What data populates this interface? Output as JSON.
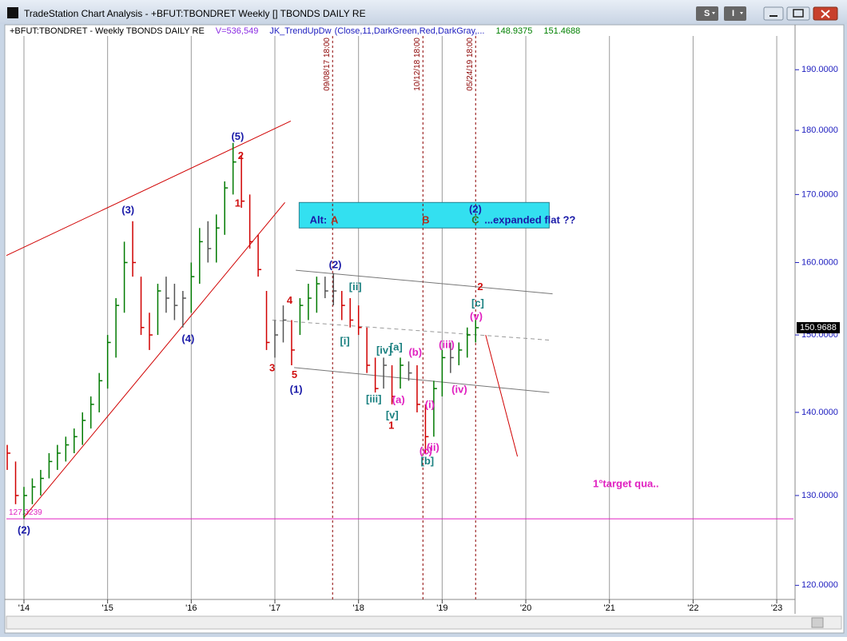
{
  "window": {
    "title": "TradeStation Chart Analysis - +BFUT:TBONDRET Weekly [] TBONDS DAILY RE",
    "buttons": [
      "S",
      "I"
    ]
  },
  "chart_data": {
    "type": "ohlc",
    "header": [
      {
        "text": "+BFUT:TBONDRET - Weekly  TBONDS DAILY RE",
        "color": "#000000"
      },
      {
        "text": "V=536,549",
        "color": "#8a2be2"
      },
      {
        "text": "JK_TrendUpDw",
        "color": "#2020c0"
      },
      {
        "text": "(Close,11,DarkGreen,Red,DarkGray,...",
        "color": "#2020c0"
      },
      {
        "text": "148.9375",
        "color": "#008000"
      },
      {
        "text": "151.4688",
        "color": "#008000"
      }
    ],
    "x": [
      2013.8,
      2013.9,
      2014.0,
      2014.1,
      2014.2,
      2014.3,
      2014.4,
      2014.5,
      2014.6,
      2014.7,
      2014.8,
      2014.9,
      2015.0,
      2015.1,
      2015.2,
      2015.3,
      2015.4,
      2015.5,
      2015.6,
      2015.7,
      2015.8,
      2015.9,
      2016.0,
      2016.1,
      2016.2,
      2016.3,
      2016.4,
      2016.5,
      2016.6,
      2016.7,
      2016.8,
      2016.9,
      2017.0,
      2017.1,
      2017.2,
      2017.3,
      2017.4,
      2017.5,
      2017.6,
      2017.7,
      2017.8,
      2017.9,
      2018.0,
      2018.1,
      2018.2,
      2018.3,
      2018.4,
      2018.5,
      2018.6,
      2018.7,
      2018.8,
      2018.9,
      2019.0,
      2019.1,
      2019.2,
      2019.3,
      2019.4
    ],
    "high": [
      136,
      134,
      131,
      132,
      133,
      135,
      136,
      137,
      138,
      140,
      142,
      145,
      150,
      155,
      163,
      166,
      158,
      153,
      157,
      158,
      157,
      156,
      160,
      165,
      166,
      167,
      172,
      178,
      176,
      170,
      164,
      156,
      152,
      154,
      152,
      155,
      157,
      158,
      158,
      158.5,
      156,
      155,
      154,
      151,
      147,
      147,
      146,
      147,
      146.5,
      146,
      141,
      144,
      148,
      149,
      149,
      151,
      152
    ],
    "low": [
      133,
      129,
      127.3,
      129,
      130,
      132,
      133,
      134,
      135,
      136,
      138,
      140,
      143,
      147,
      153,
      158,
      150,
      148,
      150,
      153,
      152,
      151,
      153,
      157,
      160,
      160,
      164,
      170,
      168,
      162,
      158,
      148,
      147,
      149,
      146,
      150,
      152,
      153,
      155,
      154,
      152,
      151,
      150,
      145,
      142.5,
      143,
      141,
      143,
      144,
      140,
      135,
      137,
      142,
      145,
      146,
      147,
      149
    ],
    "close": [
      135,
      130,
      130,
      131,
      132,
      134,
      135,
      136,
      137,
      139,
      141,
      144,
      149,
      154,
      160,
      160,
      151,
      150,
      156,
      155,
      154,
      155,
      158,
      163,
      162,
      165,
      171,
      175,
      169,
      163,
      159,
      149,
      150,
      152,
      148,
      154,
      155,
      157,
      156,
      156,
      154,
      152,
      151,
      146,
      143,
      146,
      142,
      146,
      145,
      141,
      137,
      143,
      147,
      147,
      148,
      150,
      150.97
    ],
    "colors": [
      "#d00000",
      "#d00000",
      "#007a00",
      "#007a00",
      "#007a00",
      "#007a00",
      "#007a00",
      "#007a00",
      "#007a00",
      "#007a00",
      "#007a00",
      "#007a00",
      "#007a00",
      "#007a00",
      "#007a00",
      "#d00000",
      "#d00000",
      "#d00000",
      "#007a00",
      "#555555",
      "#555555",
      "#555555",
      "#007a00",
      "#007a00",
      "#555555",
      "#007a00",
      "#007a00",
      "#007a00",
      "#d00000",
      "#d00000",
      "#d00000",
      "#d00000",
      "#555555",
      "#555555",
      "#d00000",
      "#007a00",
      "#007a00",
      "#007a00",
      "#555555",
      "#555555",
      "#d00000",
      "#d00000",
      "#d00000",
      "#d00000",
      "#d00000",
      "#555555",
      "#d00000",
      "#007a00",
      "#555555",
      "#d00000",
      "#d00000",
      "#007a00",
      "#007a00",
      "#555555",
      "#007a00",
      "#007a00",
      "#007a00"
    ],
    "xlim": [
      2013.79,
      2023.2
    ],
    "ylim": [
      118.5,
      195.8
    ],
    "log_y": true,
    "grid": "x",
    "xticks": [
      {
        "value": 2014,
        "label": "'14"
      },
      {
        "value": 2015,
        "label": "'15"
      },
      {
        "value": 2016,
        "label": "'16"
      },
      {
        "value": 2017,
        "label": "'17"
      },
      {
        "value": 2018,
        "label": "'18"
      },
      {
        "value": 2019,
        "label": "'19"
      },
      {
        "value": 2020,
        "label": "'20"
      },
      {
        "value": 2021,
        "label": "'21"
      },
      {
        "value": 2022,
        "label": "'22"
      },
      {
        "value": 2023,
        "label": "'23"
      }
    ],
    "yticks": [
      {
        "value": 120,
        "label": "120.0000"
      },
      {
        "value": 130,
        "label": "130.0000"
      },
      {
        "value": 140,
        "label": "140.0000"
      },
      {
        "value": 150,
        "label": "150.0000"
      },
      {
        "value": 160,
        "label": "160.0000"
      },
      {
        "value": 170,
        "label": "170.0000"
      },
      {
        "value": 180,
        "label": "180.0000"
      },
      {
        "value": 190,
        "label": "190.0000"
      }
    ],
    "last_price": 150.9688,
    "hlines": [
      {
        "value": 127.3239,
        "color": "#e020c0"
      }
    ],
    "vlines": [
      {
        "x": 2017.69,
        "label": "09/08/17 18:00",
        "color": "#8b0000"
      },
      {
        "x": 2018.77,
        "label": "10/12/18 18:00",
        "color": "#8b0000"
      },
      {
        "x": 2019.4,
        "label": "05/24/19 18:00",
        "color": "#8b0000"
      }
    ],
    "trendlines": [
      {
        "points": [
          [
            2013.79,
            161
          ],
          [
            2017.19,
            181.5
          ]
        ],
        "color": "#d00000",
        "dash": false
      },
      {
        "points": [
          [
            2014.0,
            127.5
          ],
          [
            2017.12,
            168.8
          ]
        ],
        "color": "#d00000",
        "dash": false
      },
      {
        "points": [
          [
            2017.25,
            158.9
          ],
          [
            2020.32,
            155.6
          ]
        ],
        "color": "#777777",
        "dash": false
      },
      {
        "points": [
          [
            2016.97,
            152.0
          ],
          [
            2020.3,
            149.3
          ]
        ],
        "color": "#999999",
        "dash": true
      },
      {
        "points": [
          [
            2017.23,
            145.7
          ],
          [
            2020.28,
            142.5
          ]
        ],
        "color": "#777777",
        "dash": false
      },
      {
        "points": [
          [
            2019.52,
            150.0
          ],
          [
            2019.9,
            134.6
          ]
        ],
        "color": "#d00000",
        "dash": false
      }
    ],
    "zone": {
      "x": [
        2017.29,
        2020.28
      ],
      "y": [
        165.0,
        168.8
      ],
      "color": "#33e0f0"
    },
    "annotations": [
      {
        "text": "(5)",
        "x": 2016.555,
        "y": 178.9,
        "color": "#1a1aa8"
      },
      {
        "text": "2",
        "x": 2016.593,
        "y": 175.9,
        "color": "#d01010"
      },
      {
        "text": "1",
        "x": 2016.555,
        "y": 168.6,
        "color": "#d01010"
      },
      {
        "text": "(3)",
        "x": 2015.244,
        "y": 167.6,
        "color": "#1a1aa8"
      },
      {
        "text": "(4)",
        "x": 2015.962,
        "y": 149.4,
        "color": "#1a1aa8"
      },
      {
        "text": "3",
        "x": 2016.967,
        "y": 145.6,
        "color": "#d01010"
      },
      {
        "text": "4",
        "x": 2017.177,
        "y": 154.6,
        "color": "#d01010"
      },
      {
        "text": "5",
        "x": 2017.234,
        "y": 144.7,
        "color": "#d01010"
      },
      {
        "text": "(1)",
        "x": 2017.254,
        "y": 142.8,
        "color": "#1a1aa8"
      },
      {
        "text": "(2)",
        "x": 2017.722,
        "y": 159.6,
        "color": "#1a1aa8"
      },
      {
        "text": "[ii]",
        "x": 2017.962,
        "y": 156.5,
        "color": "#1a8080"
      },
      {
        "text": "[i]",
        "x": 2017.837,
        "y": 149.1,
        "color": "#1a8080"
      },
      {
        "text": "[iv]",
        "x": 2018.306,
        "y": 147.9,
        "color": "#1a8080"
      },
      {
        "text": "[a]",
        "x": 2018.45,
        "y": 148.3,
        "color": "#1a8080"
      },
      {
        "text": "[iii]",
        "x": 2018.182,
        "y": 141.6,
        "color": "#1a8080"
      },
      {
        "text": "(a)",
        "x": 2018.478,
        "y": 141.5,
        "color": "#e020c0"
      },
      {
        "text": "(b)",
        "x": 2018.679,
        "y": 147.6,
        "color": "#e020c0"
      },
      {
        "text": "[v]",
        "x": 2018.402,
        "y": 139.6,
        "color": "#1a8080"
      },
      {
        "text": "1",
        "x": 2018.392,
        "y": 138.3,
        "color": "#d01010"
      },
      {
        "text": "(i)",
        "x": 2018.852,
        "y": 140.9,
        "color": "#e020c0"
      },
      {
        "text": "(ii)",
        "x": 2018.89,
        "y": 135.6,
        "color": "#e020c0"
      },
      {
        "text": "(c)",
        "x": 2018.804,
        "y": 135.2,
        "color": "#e020c0"
      },
      {
        "text": "[b]",
        "x": 2018.823,
        "y": 134.0,
        "color": "#1a8080"
      },
      {
        "text": "(iii)",
        "x": 2019.053,
        "y": 148.6,
        "color": "#e020c0"
      },
      {
        "text": "(iv)",
        "x": 2019.206,
        "y": 142.8,
        "color": "#e020c0"
      },
      {
        "text": "(v)",
        "x": 2019.407,
        "y": 152.4,
        "color": "#e020c0"
      },
      {
        "text": "[c]",
        "x": 2019.426,
        "y": 154.2,
        "color": "#1a8080"
      },
      {
        "text": "2",
        "x": 2019.455,
        "y": 156.5,
        "color": "#d01010"
      },
      {
        "text": "(2)",
        "x": 2014.0,
        "y": 126.0,
        "color": "#1a1aa8"
      },
      {
        "text": "1°target qua..",
        "x": 2021.196,
        "y": 131.3,
        "color": "#e020c0"
      },
      {
        "text": "Alt:",
        "x": 2017.52,
        "y": 166.1,
        "color": "#1a1aa8"
      },
      {
        "text": "A",
        "x": 2017.713,
        "y": 166.1,
        "color": "#b03020"
      },
      {
        "text": "B",
        "x": 2018.804,
        "y": 166.1,
        "color": "#b03020"
      },
      {
        "text": "C",
        "x": 2019.397,
        "y": 166.1,
        "color": "#2a7a2a"
      },
      {
        "text": "(2)",
        "x": 2019.397,
        "y": 167.7,
        "color": "#1a1aa8"
      },
      {
        "text": "...expanded flat ??",
        "x": 2020.05,
        "y": 166.1,
        "color": "#1a1aa8"
      }
    ]
  }
}
